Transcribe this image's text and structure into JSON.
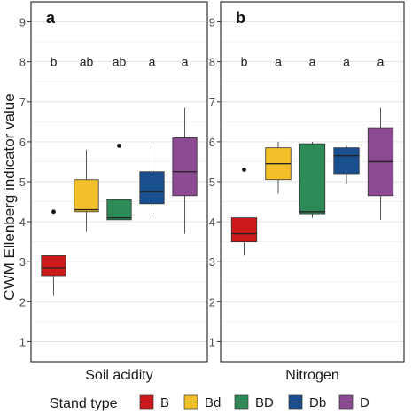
{
  "chart_data": {
    "type": "box",
    "ylabel": "CWM Ellenberg indicator value",
    "ylim": [
      0.5,
      9.5
    ],
    "yticks": [
      1,
      2,
      3,
      4,
      5,
      6,
      7,
      8,
      9
    ],
    "grid": true,
    "legend": {
      "title": "Stand type",
      "placement": "bottom",
      "entries": [
        {
          "label": "B",
          "color": "#cc1a1a"
        },
        {
          "label": "Bd",
          "color": "#f3c02a"
        },
        {
          "label": "BD",
          "color": "#2e8b57"
        },
        {
          "label": "Db",
          "color": "#1a4f8f"
        },
        {
          "label": "D",
          "color": "#8b4a91"
        }
      ]
    },
    "panels": [
      {
        "tag": "a",
        "xlabel": "Soil acidity",
        "boxes": [
          {
            "group": "B",
            "min": 2.15,
            "q1": 2.65,
            "median": 2.85,
            "q3": 3.15,
            "max": 3.15,
            "outliers": [
              4.25
            ],
            "letter": "b"
          },
          {
            "group": "Bd",
            "min": 3.75,
            "q1": 4.25,
            "median": 4.3,
            "q3": 5.05,
            "max": 5.8,
            "outliers": [],
            "letter": "ab"
          },
          {
            "group": "BD",
            "min": 4.05,
            "q1": 4.05,
            "median": 4.1,
            "q3": 4.55,
            "max": 4.55,
            "outliers": [
              5.9
            ],
            "letter": "ab"
          },
          {
            "group": "Db",
            "min": 4.2,
            "q1": 4.45,
            "median": 4.75,
            "q3": 5.25,
            "max": 5.9,
            "outliers": [],
            "letter": "a"
          },
          {
            "group": "D",
            "min": 3.7,
            "q1": 4.65,
            "median": 5.25,
            "q3": 6.1,
            "max": 6.85,
            "outliers": [],
            "letter": "a"
          }
        ]
      },
      {
        "tag": "b",
        "xlabel": "Nitrogen",
        "boxes": [
          {
            "group": "B",
            "min": 3.15,
            "q1": 3.5,
            "median": 3.7,
            "q3": 4.1,
            "max": 4.1,
            "outliers": [
              5.3
            ],
            "letter": "b"
          },
          {
            "group": "Bd",
            "min": 4.7,
            "q1": 5.05,
            "median": 5.45,
            "q3": 5.85,
            "max": 6.0,
            "outliers": [],
            "letter": "a"
          },
          {
            "group": "BD",
            "min": 4.1,
            "q1": 4.2,
            "median": 4.25,
            "q3": 5.95,
            "max": 6.0,
            "outliers": [],
            "letter": "a"
          },
          {
            "group": "Db",
            "min": 4.95,
            "q1": 5.2,
            "median": 5.65,
            "q3": 5.85,
            "max": 5.9,
            "outliers": [],
            "letter": "a"
          },
          {
            "group": "D",
            "min": 4.05,
            "q1": 4.65,
            "median": 5.5,
            "q3": 6.35,
            "max": 6.85,
            "outliers": [],
            "letter": "a"
          }
        ]
      }
    ]
  }
}
